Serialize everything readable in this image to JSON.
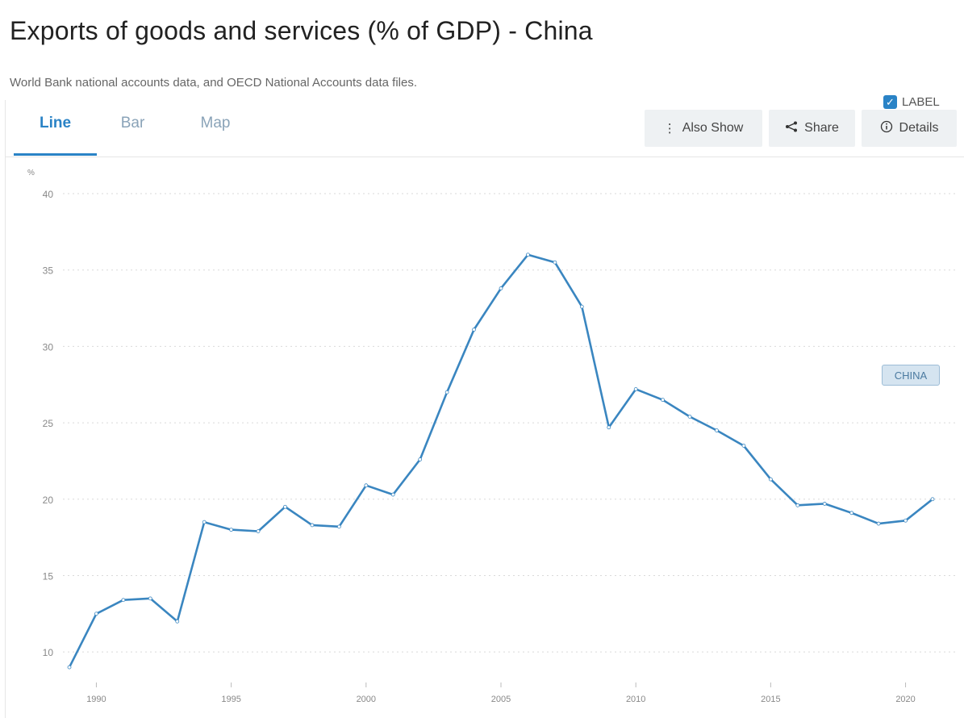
{
  "page": {
    "title": "Exports of goods and services (% of GDP) - China",
    "source": "World Bank national accounts data, and OECD National Accounts data files."
  },
  "tabs": [
    {
      "label": "Line",
      "active": true
    },
    {
      "label": "Bar",
      "active": false
    },
    {
      "label": "Map",
      "active": false
    }
  ],
  "toolbar": {
    "also_show": "Also Show",
    "share": "Share",
    "details": "Details"
  },
  "label_toggle": {
    "text": "LABEL",
    "checked": true
  },
  "colors": {
    "accent": "#2a83c6",
    "line": "#3a86c0",
    "grid": "#d9d9d9"
  },
  "chart_data": {
    "type": "line",
    "unit_label": "%",
    "ylim": [
      8,
      40
    ],
    "yticks": [
      10,
      15,
      20,
      25,
      30,
      35,
      40
    ],
    "xlim": [
      1989,
      2021
    ],
    "xticks": [
      1990,
      1995,
      2000,
      2005,
      2010,
      2015,
      2020
    ],
    "grid": true,
    "series": [
      {
        "name": "CHINA",
        "x": [
          1989,
          1990,
          1991,
          1992,
          1993,
          1994,
          1995,
          1996,
          1997,
          1998,
          1999,
          2000,
          2001,
          2002,
          2003,
          2004,
          2005,
          2006,
          2007,
          2008,
          2009,
          2010,
          2011,
          2012,
          2013,
          2014,
          2015,
          2016,
          2017,
          2018,
          2019,
          2020,
          2021
        ],
        "y": [
          9.0,
          12.5,
          13.4,
          13.5,
          12.0,
          18.5,
          18.0,
          17.9,
          19.5,
          18.3,
          18.2,
          20.9,
          20.3,
          22.6,
          27.0,
          31.1,
          33.8,
          36.0,
          35.5,
          32.6,
          24.7,
          27.2,
          26.5,
          25.4,
          24.5,
          23.5,
          21.3,
          19.6,
          19.7,
          19.1,
          18.4,
          18.6,
          20.0
        ]
      }
    ]
  }
}
